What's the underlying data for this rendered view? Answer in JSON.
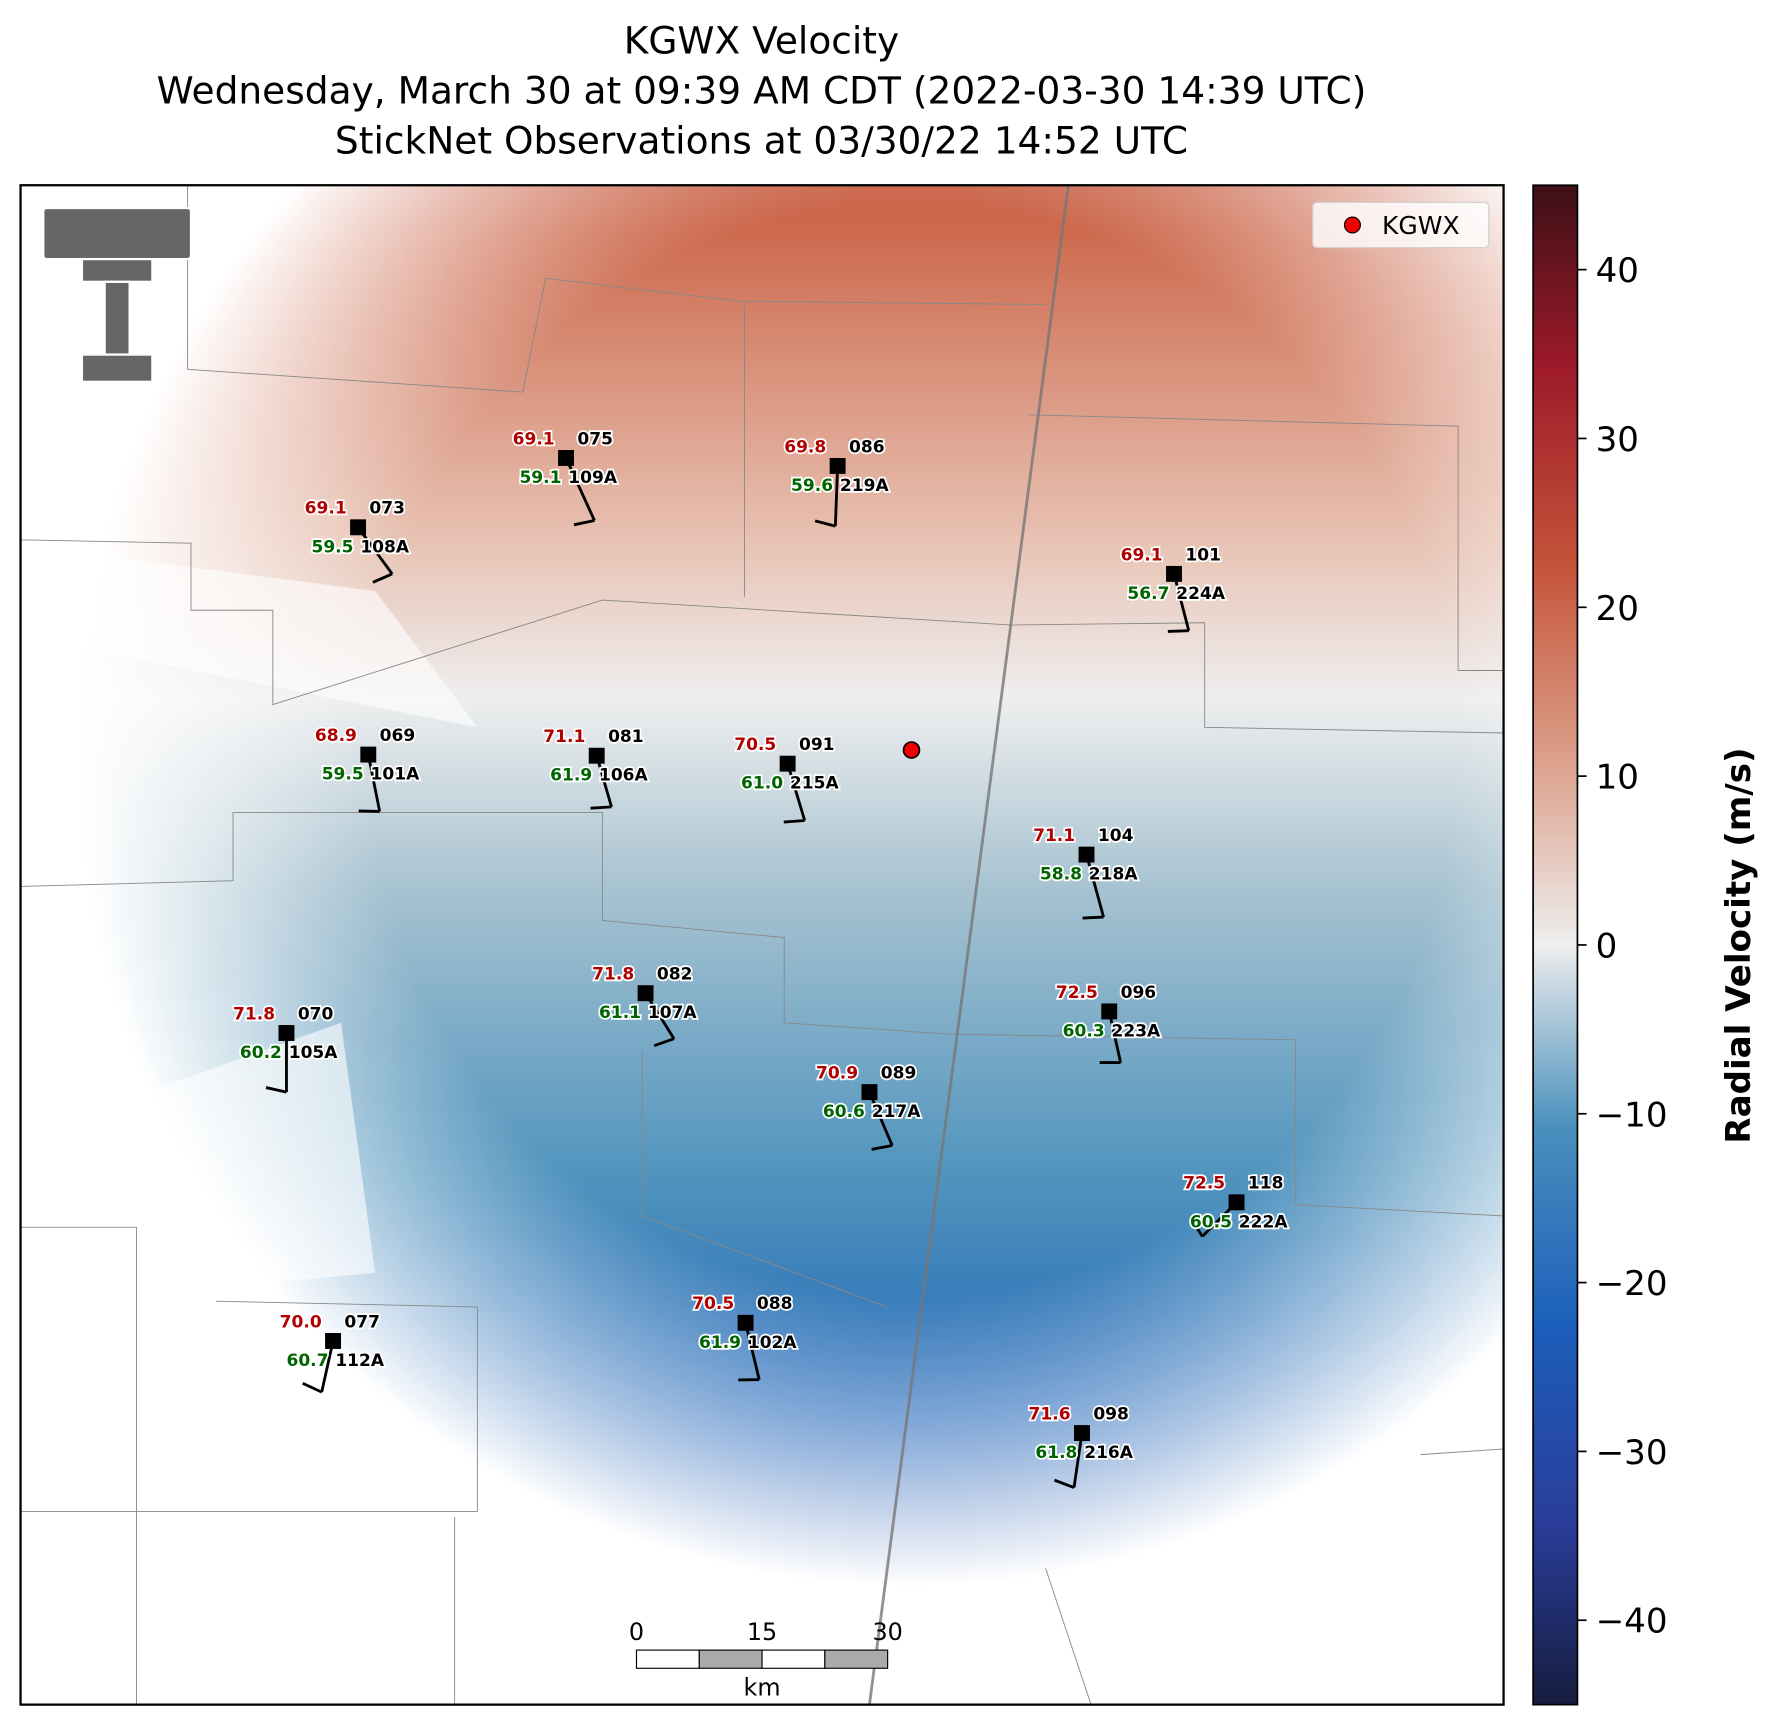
{
  "title_lines": [
    "KGWX Velocity",
    "Wednesday, March 30 at 09:39 AM CDT (2022-03-30 14:39 UTC)",
    "StickNet Observations at 03/30/22 14:52 UTC"
  ],
  "legend": {
    "label": "KGWX"
  },
  "stations": [
    {
      "temperature": "69.1",
      "dewpoint": "59.5",
      "station": "073",
      "probe": "108A"
    },
    {
      "temperature": "69.1",
      "dewpoint": "59.1",
      "station": "075",
      "probe": "109A"
    },
    {
      "temperature": "69.8",
      "dewpoint": "59.6",
      "station": "086",
      "probe": "219A"
    },
    {
      "temperature": "69.1",
      "dewpoint": "56.7",
      "station": "101",
      "probe": "224A"
    },
    {
      "temperature": "68.9",
      "dewpoint": "59.5",
      "station": "069",
      "probe": "101A"
    },
    {
      "temperature": "71.1",
      "dewpoint": "61.9",
      "station": "081",
      "probe": "106A"
    },
    {
      "temperature": "70.5",
      "dewpoint": "61.0",
      "station": "091",
      "probe": "215A"
    },
    {
      "temperature": "71.1",
      "dewpoint": "58.8",
      "station": "104",
      "probe": "218A"
    },
    {
      "temperature": "71.8",
      "dewpoint": "61.1",
      "station": "082",
      "probe": "107A"
    },
    {
      "temperature": "71.8",
      "dewpoint": "60.2",
      "station": "070",
      "probe": "105A"
    },
    {
      "temperature": "72.5",
      "dewpoint": "60.3",
      "station": "096",
      "probe": "223A"
    },
    {
      "temperature": "70.9",
      "dewpoint": "60.6",
      "station": "089",
      "probe": "217A"
    },
    {
      "temperature": "72.5",
      "dewpoint": "60.5",
      "station": "118",
      "probe": "222A"
    },
    {
      "temperature": "70.5",
      "dewpoint": "61.9",
      "station": "088",
      "probe": "102A"
    },
    {
      "temperature": "70.0",
      "dewpoint": "60.7",
      "station": "077",
      "probe": "112A"
    },
    {
      "temperature": "71.6",
      "dewpoint": "61.8",
      "station": "098",
      "probe": "216A"
    }
  ],
  "colorbar": {
    "label": "Radial Velocity (m/s)",
    "lim": [
      -45,
      45
    ],
    "ticks": [
      {
        "value": -40,
        "label": "−40"
      },
      {
        "value": -30,
        "label": "−30"
      },
      {
        "value": -20,
        "label": "−20"
      },
      {
        "value": -10,
        "label": "−10"
      },
      0,
      10,
      20,
      30,
      40
    ]
  },
  "scale_bar": {
    "ticks": [
      0,
      15,
      30
    ],
    "unit": "km"
  }
}
